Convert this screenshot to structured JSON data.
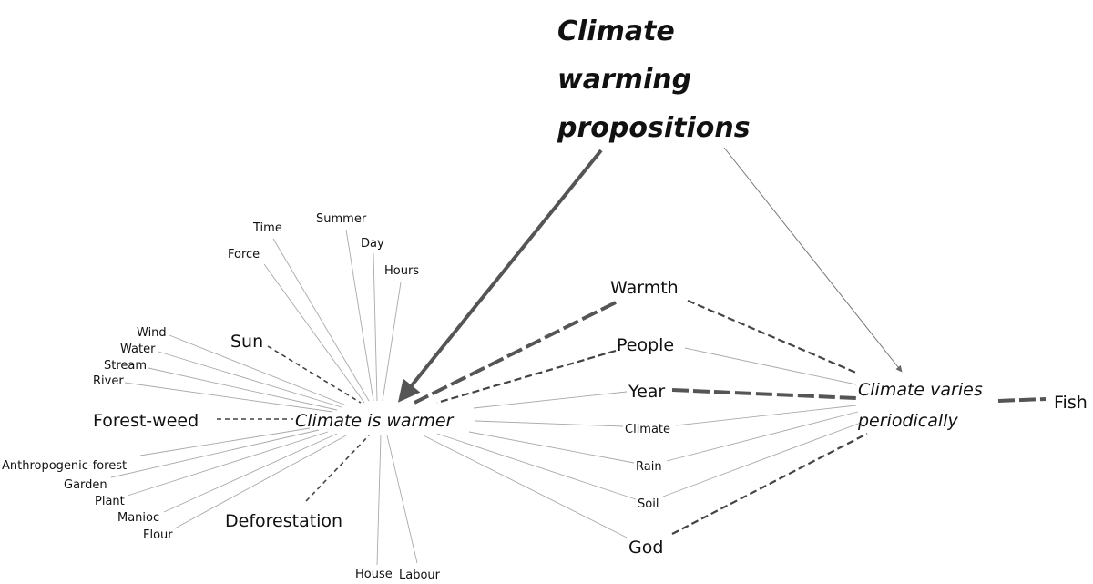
{
  "title_lines": [
    "Climate",
    "warming",
    "propositions"
  ],
  "hubs": {
    "warmer": "Climate is warmer",
    "varies_line1": "Climate varies",
    "varies_line2": "periodically"
  },
  "nodes": {
    "time": "Time",
    "summer": "Summer",
    "day": "Day",
    "hours": "Hours",
    "force": "Force",
    "wind": "Wind",
    "water": "Water",
    "stream": "Stream",
    "river": "River",
    "sun": "Sun",
    "forest_weed": "Forest-weed",
    "anthropogenic_forest": "Anthropogenic-forest",
    "garden": "Garden",
    "plant": "Plant",
    "manioc": "Manioc",
    "flour": "Flour",
    "deforestation": "Deforestation",
    "house": "House",
    "labour": "Labour",
    "warmth": "Warmth",
    "people": "People",
    "year": "Year",
    "climate": "Climate",
    "rain": "Rain",
    "soil": "Soil",
    "god": "God",
    "fish": "Fish"
  }
}
